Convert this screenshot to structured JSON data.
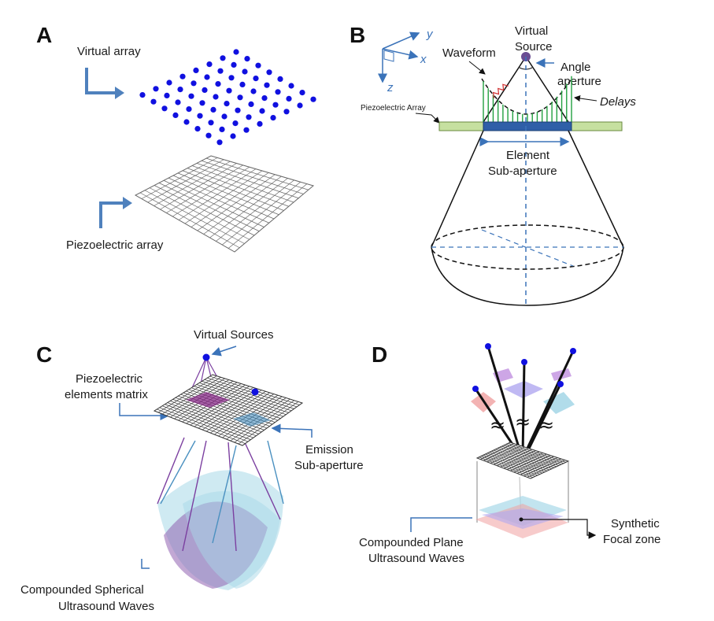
{
  "panels": {
    "a": {
      "letter": "A",
      "virtual_array_label": "Virtual array",
      "piezo_array_label": "Piezoelectric array",
      "colors": {
        "dot": "#1010e0",
        "arrow": "#4f81bd",
        "grid": "#666666"
      }
    },
    "b": {
      "letter": "B",
      "axis_x": "x",
      "axis_y": "y",
      "axis_z": "z",
      "virtual_source_line1": "Virtual",
      "virtual_source_line2": "Source",
      "waveform_label": "Waveform",
      "angle_line1": "Angle",
      "angle_line2": "aperture",
      "delays_label": "Delays",
      "piezo_array_label": "Piezoelectric Array",
      "element_line1": "Element",
      "element_line2": "Sub-aperture",
      "colors": {
        "axis": "#3b73b9",
        "array": "#c6e0a0",
        "element": "#2f5fa8",
        "delay": "#22a040",
        "waveform": "#d03030",
        "source": "#6a4c93"
      }
    },
    "c": {
      "letter": "C",
      "virtual_sources_label": "Virtual Sources",
      "matrix_line1": "Piezoelectric",
      "matrix_line2": "elements matrix",
      "emission_line1": "Emission",
      "emission_line2": "Sub-aperture",
      "compounded_line1": "Compounded Spherical",
      "compounded_line2": "Ultrasound Waves",
      "colors": {
        "purple": "#7b3fa0",
        "teal": "#4a90c0",
        "wave_light": "#a8d8e8",
        "wave_purple": "#9060b0"
      }
    },
    "d": {
      "letter": "D",
      "compounded_line1": "Compounded Plane",
      "compounded_line2": "Ultrasound Waves",
      "synthetic_line1": "Synthetic",
      "synthetic_line2": "Focal zone",
      "approx_symbol": "≈",
      "colors": {
        "pink": "#f0a0a0",
        "lavender": "#b0a8f0",
        "lightblue": "#a8d8e8",
        "violet": "#c090e0"
      }
    }
  }
}
